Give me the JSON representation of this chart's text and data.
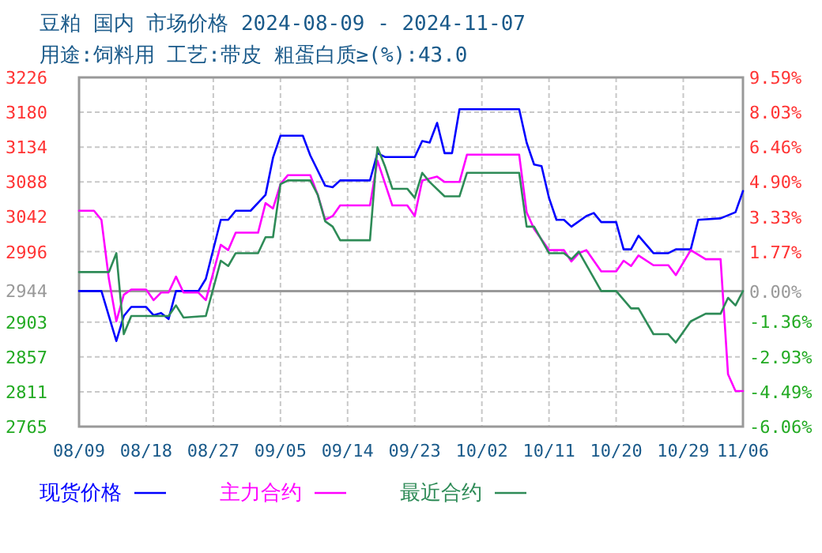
{
  "chart_data": {
    "type": "line",
    "title": "豆粕 国内 市场价格 2024-08-09 - 2024-11-07",
    "subtitle": "用途:饲料用 工艺:带皮 粗蛋白质≥(%):43.0",
    "xlim": [
      "2024-08-09",
      "2024-11-06"
    ],
    "xticks": [
      {
        "value": "2024-08-09",
        "label": "08/09"
      },
      {
        "value": "2024-08-18",
        "label": "08/18"
      },
      {
        "value": "2024-08-27",
        "label": "08/27"
      },
      {
        "value": "2024-09-05",
        "label": "09/05"
      },
      {
        "value": "2024-09-14",
        "label": "09/14"
      },
      {
        "value": "2024-09-23",
        "label": "09/23"
      },
      {
        "value": "2024-10-02",
        "label": "10/02"
      },
      {
        "value": "2024-10-11",
        "label": "10/11"
      },
      {
        "value": "2024-10-20",
        "label": "10/20"
      },
      {
        "value": "2024-10-29",
        "label": "10/29"
      },
      {
        "value": "2024-11-06",
        "label": "11/06"
      }
    ],
    "ylim": [
      2765,
      3226
    ],
    "yticks": [
      2765,
      2811,
      2857,
      2903,
      2944,
      2996,
      3042,
      3088,
      3134,
      3180,
      3226
    ],
    "y2lim": [
      -6.06,
      9.59
    ],
    "y2ticks": [
      {
        "value": -6.06,
        "label": "-6.06%"
      },
      {
        "value": -4.49,
        "label": "-4.49%"
      },
      {
        "value": -2.93,
        "label": "-2.93%"
      },
      {
        "value": -1.36,
        "label": "-1.36%"
      },
      {
        "value": 0,
        "label": "0.00%"
      },
      {
        "value": 1.77,
        "label": "1.77%"
      },
      {
        "value": 3.33,
        "label": "3.33%"
      },
      {
        "value": 4.9,
        "label": "4.90%"
      },
      {
        "value": 6.46,
        "label": "6.46%"
      },
      {
        "value": 8.03,
        "label": "8.03%"
      },
      {
        "value": 9.59,
        "label": "9.59%"
      }
    ],
    "grid": true,
    "legend": "bottom",
    "marker": "none",
    "line_style": "solid",
    "ref_lines": [
      {
        "axis": "y",
        "value": 2944,
        "color": "#999999"
      }
    ],
    "series": [
      {
        "name": "现货价格",
        "color": "#0000ff",
        "x": [
          "2024-08-09",
          "2024-08-12",
          "2024-08-14",
          "2024-08-15",
          "2024-08-16",
          "2024-08-18",
          "2024-08-19",
          "2024-08-20",
          "2024-08-21",
          "2024-08-22",
          "2024-08-25",
          "2024-08-26",
          "2024-08-28",
          "2024-08-29",
          "2024-08-30",
          "2024-09-01",
          "2024-09-03",
          "2024-09-04",
          "2024-09-05",
          "2024-09-08",
          "2024-09-09",
          "2024-09-11",
          "2024-09-12",
          "2024-09-13",
          "2024-09-17",
          "2024-09-18",
          "2024-09-19",
          "2024-09-23",
          "2024-09-24",
          "2024-09-25",
          "2024-09-26",
          "2024-09-27",
          "2024-09-28",
          "2024-09-29",
          "2024-10-07",
          "2024-10-08",
          "2024-10-09",
          "2024-10-10",
          "2024-10-11",
          "2024-10-12",
          "2024-10-13",
          "2024-10-14",
          "2024-10-16",
          "2024-10-17",
          "2024-10-18",
          "2024-10-20",
          "2024-10-21",
          "2024-10-22",
          "2024-10-23",
          "2024-10-25",
          "2024-10-27",
          "2024-10-28",
          "2024-10-30",
          "2024-10-31",
          "2024-11-03",
          "2024-11-05",
          "2024-11-06"
        ],
        "values": [
          2944,
          2944,
          2878,
          2911,
          2923,
          2923,
          2912,
          2915,
          2907,
          2944,
          2944,
          2960,
          3038,
          3038,
          3050,
          3050,
          3071,
          3120,
          3149,
          3149,
          3123,
          3083,
          3081,
          3090,
          3090,
          3126,
          3121,
          3121,
          3142,
          3140,
          3166,
          3126,
          3126,
          3184,
          3184,
          3140,
          3111,
          3109,
          3067,
          3038,
          3038,
          3029,
          3043,
          3047,
          3035,
          3035,
          2999,
          2999,
          3017,
          2994,
          2994,
          2999,
          2999,
          3038,
          3040,
          3048,
          3076
        ]
      },
      {
        "name": "主力合约",
        "color": "#ff00ff",
        "x": [
          "2024-08-09",
          "2024-08-11",
          "2024-08-12",
          "2024-08-13",
          "2024-08-14",
          "2024-08-15",
          "2024-08-16",
          "2024-08-18",
          "2024-08-19",
          "2024-08-20",
          "2024-08-21",
          "2024-08-22",
          "2024-08-23",
          "2024-08-25",
          "2024-08-26",
          "2024-08-28",
          "2024-08-29",
          "2024-08-30",
          "2024-09-02",
          "2024-09-03",
          "2024-09-04",
          "2024-09-05",
          "2024-09-06",
          "2024-09-09",
          "2024-09-10",
          "2024-09-11",
          "2024-09-12",
          "2024-09-13",
          "2024-09-17",
          "2024-09-18",
          "2024-09-20",
          "2024-09-22",
          "2024-09-23",
          "2024-09-24",
          "2024-09-26",
          "2024-09-27",
          "2024-09-29",
          "2024-09-30",
          "2024-10-07",
          "2024-10-08",
          "2024-10-09",
          "2024-10-11",
          "2024-10-13",
          "2024-10-14",
          "2024-10-15",
          "2024-10-16",
          "2024-10-18",
          "2024-10-20",
          "2024-10-21",
          "2024-10-22",
          "2024-10-23",
          "2024-10-25",
          "2024-10-27",
          "2024-10-28",
          "2024-10-30",
          "2024-11-01",
          "2024-11-03",
          "2024-11-04",
          "2024-11-05",
          "2024-11-06"
        ],
        "values": [
          3050,
          3050,
          3038,
          2960,
          2904,
          2939,
          2946,
          2946,
          2932,
          2942,
          2942,
          2963,
          2942,
          2942,
          2932,
          3005,
          2998,
          3021,
          3021,
          3060,
          3053,
          3085,
          3097,
          3097,
          3071,
          3038,
          3043,
          3057,
          3057,
          3116,
          3057,
          3057,
          3043,
          3090,
          3095,
          3088,
          3088,
          3124,
          3124,
          3048,
          3026,
          2998,
          2998,
          2983,
          2994,
          2998,
          2970,
          2970,
          2984,
          2977,
          2991,
          2978,
          2978,
          2965,
          2998,
          2986,
          2986,
          2834,
          2812,
          2812
        ]
      },
      {
        "name": "最近合约",
        "color": "#2e8b57",
        "x": [
          "2024-08-09",
          "2024-08-13",
          "2024-08-14",
          "2024-08-15",
          "2024-08-16",
          "2024-08-21",
          "2024-08-22",
          "2024-08-23",
          "2024-08-26",
          "2024-08-28",
          "2024-08-29",
          "2024-08-30",
          "2024-09-02",
          "2024-09-03",
          "2024-09-04",
          "2024-09-05",
          "2024-09-06",
          "2024-09-09",
          "2024-09-10",
          "2024-09-11",
          "2024-09-12",
          "2024-09-13",
          "2024-09-17",
          "2024-09-18",
          "2024-09-19",
          "2024-09-20",
          "2024-09-22",
          "2024-09-23",
          "2024-09-24",
          "2024-09-25",
          "2024-09-27",
          "2024-09-29",
          "2024-09-30",
          "2024-10-07",
          "2024-10-08",
          "2024-10-09",
          "2024-10-11",
          "2024-10-13",
          "2024-10-14",
          "2024-10-15",
          "2024-10-18",
          "2024-10-20",
          "2024-10-22",
          "2024-10-23",
          "2024-10-25",
          "2024-10-27",
          "2024-10-28",
          "2024-10-30",
          "2024-11-01",
          "2024-11-03",
          "2024-11-04",
          "2024-11-05",
          "2024-11-06"
        ],
        "values": [
          2969,
          2969,
          2994,
          2887,
          2911,
          2911,
          2925,
          2909,
          2911,
          2984,
          2977,
          2994,
          2994,
          3015,
          3015,
          3085,
          3090,
          3090,
          3071,
          3036,
          3029,
          3011,
          3011,
          3134,
          3109,
          3079,
          3079,
          3067,
          3100,
          3088,
          3069,
          3069,
          3100,
          3100,
          3029,
          3029,
          2994,
          2994,
          2986,
          2996,
          2944,
          2944,
          2921,
          2921,
          2887,
          2887,
          2876,
          2904,
          2914,
          2914,
          2935,
          2925,
          2944
        ]
      }
    ]
  }
}
